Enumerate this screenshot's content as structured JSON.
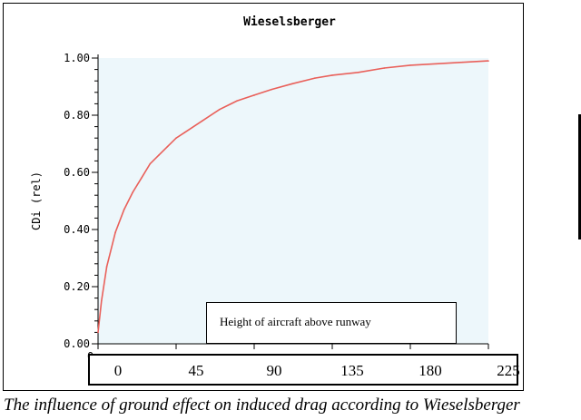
{
  "chart_data": {
    "type": "line",
    "title": "Wieselsberger",
    "ylabel": "CDi (rel)",
    "xlabel": "Height of aircraft above runway",
    "xlim": [
      0,
      225
    ],
    "ylim": [
      0,
      1.0
    ],
    "x_ticks": [
      "0",
      "45",
      "90",
      "135",
      "180",
      "225"
    ],
    "y_ticks": [
      "0.00",
      "0.20",
      "0.40",
      "0.60",
      "0.80",
      "1.00"
    ],
    "grid": false,
    "series": [
      {
        "color": "#e9605a",
        "x": [
          0,
          2,
          5,
          10,
          15,
          20,
          25,
          30,
          35,
          40,
          45,
          50,
          60,
          70,
          80,
          90,
          100,
          112,
          125,
          135,
          150,
          165,
          180,
          195,
          210,
          225
        ],
        "y": [
          0.04,
          0.15,
          0.27,
          0.39,
          0.47,
          0.53,
          0.58,
          0.63,
          0.66,
          0.69,
          0.72,
          0.74,
          0.78,
          0.82,
          0.85,
          0.87,
          0.89,
          0.91,
          0.93,
          0.94,
          0.95,
          0.965,
          0.975,
          0.98,
          0.985,
          0.99
        ]
      }
    ]
  },
  "plot_background": "#edf7fb",
  "caption": "The influence of ground effect on induced drag according to Wieselsberger",
  "stray_axis_label": "0"
}
